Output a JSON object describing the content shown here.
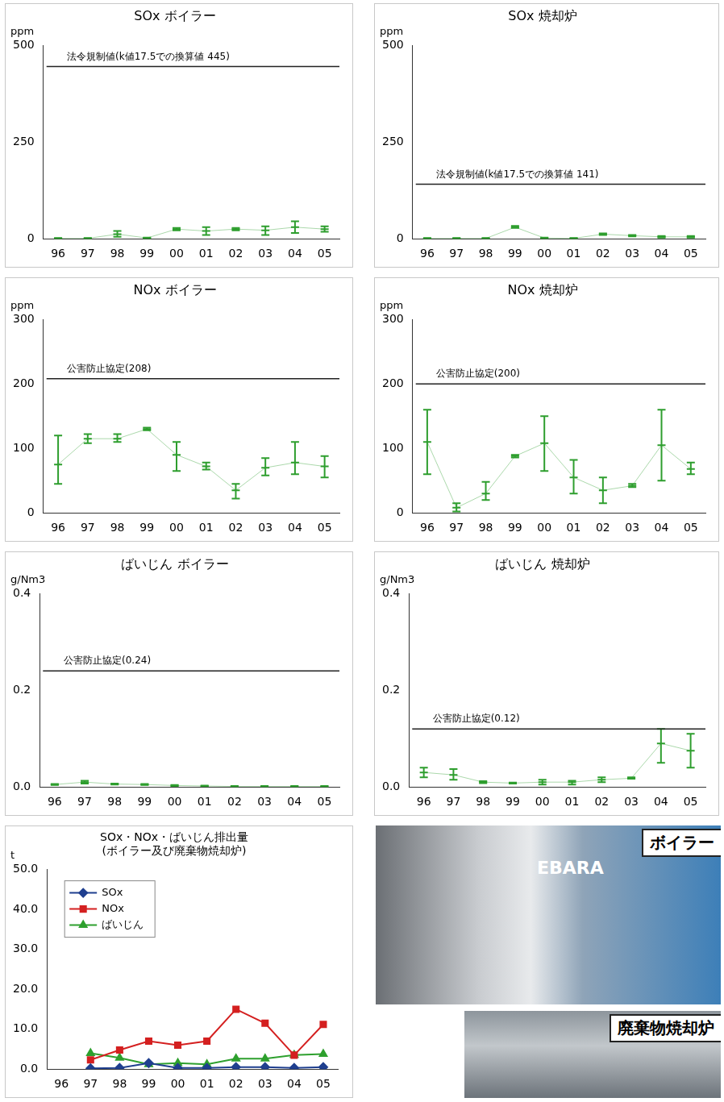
{
  "chart_data": [
    {
      "type": "range",
      "title": "SOx ボイラー",
      "y_unit": "ppm",
      "categories": [
        "96",
        "97",
        "98",
        "99",
        "00",
        "01",
        "02",
        "03",
        "04",
        "05"
      ],
      "values": [
        1,
        1,
        12,
        2,
        25,
        20,
        25,
        22,
        30,
        25
      ],
      "low": [
        0,
        0,
        5,
        0,
        22,
        10,
        22,
        10,
        15,
        18
      ],
      "high": [
        2,
        2,
        20,
        3,
        28,
        30,
        28,
        32,
        45,
        32
      ],
      "color": "#2e9e2e",
      "ylim": [
        0,
        500
      ],
      "yticks": [
        0,
        250,
        500
      ],
      "grid": false,
      "reference": {
        "value": 445,
        "label": "法令規制値(k値17.5での換算値 445)"
      }
    },
    {
      "type": "range",
      "title": "SOx 焼却炉",
      "y_unit": "ppm",
      "categories": [
        "96",
        "97",
        "98",
        "99",
        "00",
        "01",
        "02",
        "03",
        "04",
        "05"
      ],
      "values": [
        1,
        1,
        1,
        30,
        2,
        1,
        12,
        8,
        5,
        5
      ],
      "low": [
        0,
        0,
        0,
        28,
        0,
        0,
        10,
        6,
        3,
        3
      ],
      "high": [
        2,
        2,
        2,
        33,
        3,
        2,
        14,
        10,
        7,
        7
      ],
      "color": "#2e9e2e",
      "ylim": [
        0,
        500
      ],
      "yticks": [
        0,
        250,
        500
      ],
      "grid": false,
      "reference": {
        "value": 141,
        "label": "法令規制値(k値17.5での換算値 141)"
      }
    },
    {
      "type": "range",
      "title": "NOx ボイラー",
      "y_unit": "ppm",
      "categories": [
        "96",
        "97",
        "98",
        "99",
        "00",
        "01",
        "02",
        "03",
        "04",
        "05"
      ],
      "values": [
        75,
        115,
        115,
        130,
        90,
        72,
        35,
        70,
        78,
        72
      ],
      "low": [
        45,
        108,
        110,
        128,
        65,
        67,
        22,
        58,
        60,
        55
      ],
      "high": [
        120,
        122,
        122,
        132,
        110,
        78,
        45,
        85,
        110,
        88
      ],
      "color": "#2e9e2e",
      "ylim": [
        0,
        300
      ],
      "yticks": [
        0,
        100,
        200,
        300
      ],
      "grid": false,
      "reference": {
        "value": 208,
        "label": "公害防止協定(208)"
      }
    },
    {
      "type": "range",
      "title": "NOx 焼却炉",
      "y_unit": "ppm",
      "categories": [
        "96",
        "97",
        "98",
        "99",
        "00",
        "01",
        "02",
        "03",
        "04",
        "05"
      ],
      "values": [
        110,
        8,
        30,
        88,
        108,
        55,
        35,
        42,
        105,
        68
      ],
      "low": [
        60,
        2,
        20,
        86,
        65,
        30,
        15,
        40,
        50,
        60
      ],
      "high": [
        160,
        15,
        48,
        90,
        150,
        82,
        55,
        45,
        160,
        78
      ],
      "color": "#2e9e2e",
      "ylim": [
        0,
        300
      ],
      "yticks": [
        0,
        100,
        200,
        300
      ],
      "grid": false,
      "reference": {
        "value": 200,
        "label": "公害防止協定(200)"
      }
    },
    {
      "type": "range",
      "title": "ばいじん ボイラー",
      "y_unit": "g/Nm3",
      "categories": [
        "96",
        "97",
        "98",
        "99",
        "00",
        "01",
        "02",
        "03",
        "04",
        "05"
      ],
      "values": [
        0.005,
        0.01,
        0.006,
        0.005,
        0.003,
        0.002,
        0.001,
        0.001,
        0.001,
        0.001
      ],
      "low": [
        0.004,
        0.007,
        0.005,
        0.004,
        0.002,
        0.001,
        0,
        0,
        0,
        0
      ],
      "high": [
        0.006,
        0.013,
        0.007,
        0.006,
        0.004,
        0.003,
        0.002,
        0.002,
        0.002,
        0.002
      ],
      "color": "#2e9e2e",
      "ylim": [
        0,
        0.4
      ],
      "yticks": [
        {
          "value": 0,
          "label": "0.0"
        },
        0.2,
        0.4
      ],
      "grid": false,
      "reference": {
        "value": 0.24,
        "label": "公害防止協定(0.24)"
      }
    },
    {
      "type": "range",
      "title": "ばいじん 焼却炉",
      "y_unit": "g/Nm3",
      "categories": [
        "96",
        "97",
        "98",
        "99",
        "00",
        "01",
        "02",
        "03",
        "04",
        "05"
      ],
      "values": [
        0.03,
        0.025,
        0.01,
        0.008,
        0.01,
        0.01,
        0.015,
        0.018,
        0.09,
        0.075
      ],
      "low": [
        0.02,
        0.015,
        0.008,
        0.007,
        0.005,
        0.005,
        0.01,
        0.017,
        0.05,
        0.04
      ],
      "high": [
        0.04,
        0.037,
        0.012,
        0.009,
        0.015,
        0.013,
        0.02,
        0.02,
        0.12,
        0.11
      ],
      "color": "#2e9e2e",
      "ylim": [
        0,
        0.4
      ],
      "yticks": [
        {
          "value": 0,
          "label": "0.0"
        },
        0.2,
        0.4
      ],
      "grid": false,
      "reference": {
        "value": 0.12,
        "label": "公害防止協定(0.12)"
      }
    },
    {
      "type": "line",
      "title": "SOx・NOx・ばいじん排出量",
      "subtitle": "(ボイラー及び廃棄物焼却炉)",
      "y_unit": "t",
      "categories": [
        "96",
        "97",
        "98",
        "99",
        "00",
        "01",
        "02",
        "03",
        "04",
        "05"
      ],
      "series": [
        {
          "name": "SOx",
          "color": "#1f3f8f",
          "marker": "diamond",
          "values": [
            null,
            0.2,
            0.3,
            1.5,
            0.3,
            0.3,
            0.5,
            0.5,
            0.3,
            0.5
          ]
        },
        {
          "name": "NOx",
          "color": "#d42020",
          "marker": "square",
          "values": [
            null,
            2.3,
            4.8,
            7.0,
            6.0,
            7.0,
            15.0,
            11.5,
            3.5,
            11.2
          ]
        },
        {
          "name": "ばいじん",
          "color": "#2ea02e",
          "marker": "triangle",
          "values": [
            null,
            4.0,
            2.8,
            1.2,
            1.5,
            1.2,
            2.6,
            2.6,
            3.5,
            3.8
          ]
        }
      ],
      "ylim": [
        0,
        50
      ],
      "yticks": [
        {
          "value": 0,
          "label": "0.0"
        },
        {
          "value": 10,
          "label": "10.0"
        },
        {
          "value": 20,
          "label": "20.0"
        },
        {
          "value": 30,
          "label": "30.0"
        },
        {
          "value": 40,
          "label": "40.0"
        },
        {
          "value": 50,
          "label": "50.0"
        }
      ],
      "grid": false,
      "legend": "upper left"
    }
  ],
  "photos": [
    {
      "label": "ボイラー",
      "text": "EBARA"
    },
    {
      "label": "廃棄物焼却炉"
    }
  ]
}
